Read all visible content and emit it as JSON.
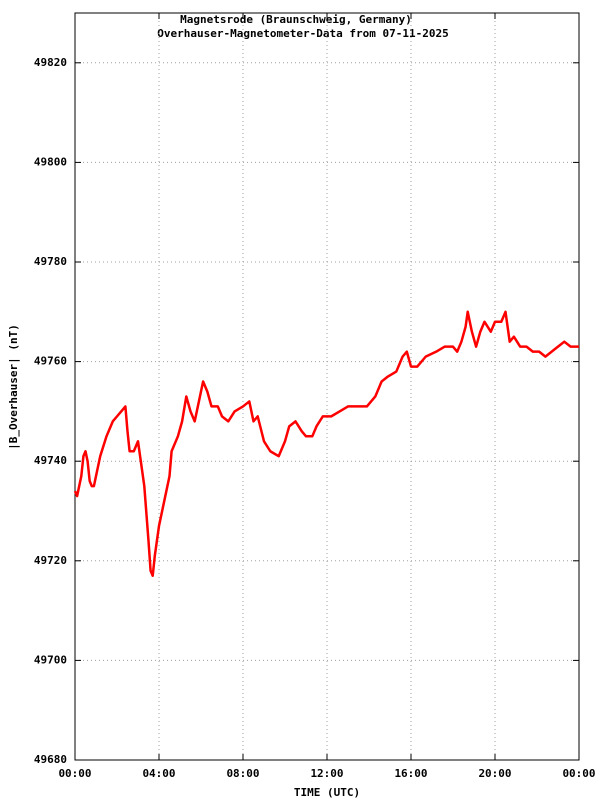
{
  "chart_data": {
    "type": "line",
    "title": "Magnetsrode (Braunschweig, Germany)",
    "subtitle": "Overhauser-Magnetometer-Data from 07-11-2025",
    "xlabel": "TIME (UTC)",
    "ylabel": "|B_Overhauser| (nT)",
    "xlim": [
      0,
      24
    ],
    "ylim": [
      49680,
      49830
    ],
    "xticks": [
      {
        "value": 0,
        "label": "00:00"
      },
      {
        "value": 4,
        "label": "04:00"
      },
      {
        "value": 8,
        "label": "08:00"
      },
      {
        "value": 12,
        "label": "12:00"
      },
      {
        "value": 16,
        "label": "16:00"
      },
      {
        "value": 20,
        "label": "20:00"
      },
      {
        "value": 24,
        "label": "00:00"
      }
    ],
    "yticks": [
      49680,
      49700,
      49720,
      49740,
      49760,
      49780,
      49800,
      49820
    ],
    "grid": true,
    "x": [
      0.0,
      0.1,
      0.3,
      0.4,
      0.5,
      0.6,
      0.7,
      0.8,
      0.9,
      1.0,
      1.2,
      1.5,
      1.8,
      2.0,
      2.2,
      2.4,
      2.5,
      2.6,
      2.8,
      3.0,
      3.1,
      3.3,
      3.5,
      3.6,
      3.7,
      3.8,
      4.0,
      4.3,
      4.5,
      4.6,
      4.9,
      5.1,
      5.3,
      5.5,
      5.7,
      5.9,
      6.1,
      6.3,
      6.5,
      6.8,
      7.0,
      7.3,
      7.6,
      8.0,
      8.3,
      8.5,
      8.7,
      9.0,
      9.3,
      9.7,
      10.0,
      10.2,
      10.5,
      10.8,
      11.0,
      11.3,
      11.5,
      11.8,
      12.2,
      12.6,
      13.0,
      13.5,
      13.9,
      14.3,
      14.6,
      14.9,
      15.3,
      15.6,
      15.8,
      16.0,
      16.3,
      16.7,
      17.2,
      17.6,
      18.0,
      18.2,
      18.4,
      18.6,
      18.7,
      18.9,
      19.1,
      19.3,
      19.5,
      19.8,
      20.0,
      20.3,
      20.5,
      20.7,
      20.9,
      21.2,
      21.5,
      21.8,
      22.1,
      22.4,
      22.7,
      23.0,
      23.3,
      23.6,
      24.0
    ],
    "series": [
      {
        "name": "Overhauser",
        "color": "#ff0000",
        "values": [
          49734,
          49733,
          49737,
          49741,
          49742,
          49740,
          49736,
          49735,
          49735,
          49737,
          49741,
          49745,
          49748,
          49749,
          49750,
          49751,
          49746,
          49742,
          49742,
          49744,
          49741,
          49735,
          49724,
          49718,
          49717,
          49721,
          49727,
          49733,
          49737,
          49742,
          49745,
          49748,
          49753,
          49750,
          49748,
          49752,
          49756,
          49754,
          49751,
          49751,
          49749,
          49748,
          49750,
          49751,
          49752,
          49748,
          49749,
          49744,
          49742,
          49741,
          49744,
          49747,
          49748,
          49746,
          49745,
          49745,
          49747,
          49749,
          49749,
          49750,
          49751,
          49751,
          49751,
          49753,
          49756,
          49757,
          49758,
          49761,
          49762,
          49759,
          49759,
          49761,
          49762,
          49763,
          49763,
          49762,
          49764,
          49767,
          49770,
          49766,
          49763,
          49766,
          49768,
          49766,
          49768,
          49768,
          49770,
          49764,
          49765,
          49763,
          49763,
          49762,
          49762,
          49761,
          49762,
          49763,
          49764,
          49763,
          49763
        ]
      }
    ]
  }
}
